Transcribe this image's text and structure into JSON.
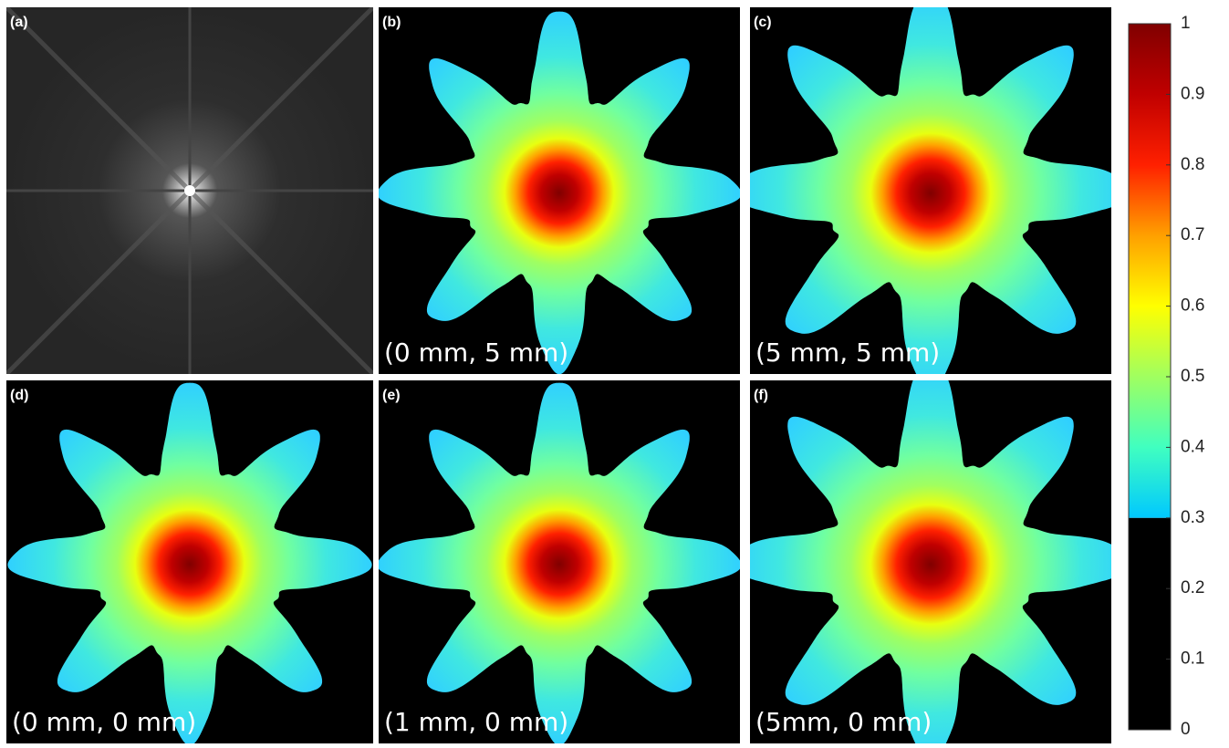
{
  "panels": [
    {
      "label": "(a)"
    },
    {
      "label": "(b)",
      "caption": "(0 mm, 5 mm)"
    },
    {
      "label": "(c)",
      "caption": "(5 mm, 5 mm)"
    },
    {
      "label": "(d)",
      "caption": "(0 mm, 0 mm)"
    },
    {
      "label": "(e)",
      "caption": "(1 mm, 0 mm)"
    },
    {
      "label": "(f)",
      "caption": "(5mm, 0 mm)"
    }
  ],
  "colorbar": {
    "lim": [
      0,
      1
    ],
    "threshold": 0.3,
    "ticks": [
      0,
      0.1,
      0.2,
      0.3,
      0.4,
      0.5,
      0.6,
      0.7,
      0.8,
      0.9,
      1
    ]
  }
}
